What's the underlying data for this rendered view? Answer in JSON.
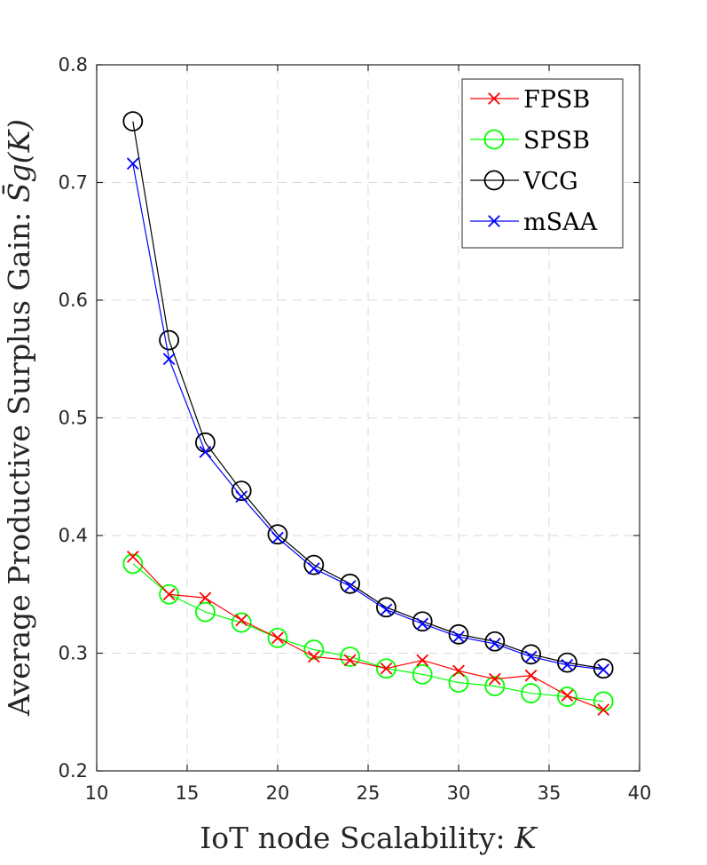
{
  "chart_data": {
    "type": "line",
    "title": "",
    "xlabel_text": "IoT node Scalability: ",
    "xlabel_var": "K",
    "ylabel_text": "Average Productive Surplus Gain: ",
    "ylabel_var": "S̄g(K)",
    "xlim": [
      10,
      40
    ],
    "ylim": [
      0.2,
      0.8
    ],
    "xticks": [
      10,
      15,
      20,
      25,
      30,
      35,
      40
    ],
    "yticks": [
      0.2,
      0.3,
      0.4,
      0.5,
      0.6,
      0.7,
      0.8
    ],
    "x": [
      12,
      14,
      16,
      18,
      20,
      22,
      24,
      26,
      28,
      30,
      32,
      34,
      36,
      38
    ],
    "grid": true,
    "legend_position": "top-right",
    "series": [
      {
        "name": "FPSB",
        "color": "#ff0000",
        "marker": "x",
        "values": [
          0.382,
          0.35,
          0.347,
          0.328,
          0.313,
          0.297,
          0.294,
          0.287,
          0.294,
          0.285,
          0.278,
          0.281,
          0.264,
          0.252
        ]
      },
      {
        "name": "SPSB",
        "color": "#00ff00",
        "marker": "o",
        "values": [
          0.376,
          0.35,
          0.335,
          0.326,
          0.313,
          0.303,
          0.297,
          0.287,
          0.282,
          0.275,
          0.272,
          0.266,
          0.263,
          0.259
        ]
      },
      {
        "name": "VCG",
        "color": "#000000",
        "marker": "o",
        "values": [
          0.752,
          0.566,
          0.479,
          0.438,
          0.401,
          0.375,
          0.359,
          0.339,
          0.327,
          0.316,
          0.31,
          0.299,
          0.292,
          0.287
        ]
      },
      {
        "name": "mSAA",
        "color": "#0000ff",
        "marker": "x",
        "values": [
          0.716,
          0.55,
          0.471,
          0.433,
          0.398,
          0.372,
          0.357,
          0.337,
          0.325,
          0.314,
          0.308,
          0.297,
          0.29,
          0.286
        ]
      }
    ]
  }
}
